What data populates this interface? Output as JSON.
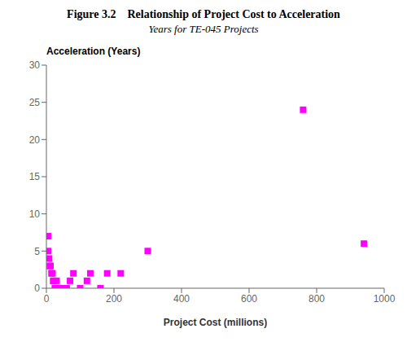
{
  "chart_data": {
    "type": "scatter",
    "title": "Figure 3.2    Relationship of Project Cost to Acceleration",
    "subtitle": "Years for TE-045 Projects",
    "x_label": "Project Cost (millions)",
    "y_label": "Acceleration (Years)",
    "color": "#ff00ff",
    "marker": "square",
    "grid": false,
    "xlim": [
      0,
      1000
    ],
    "ylim": [
      0,
      30
    ],
    "xticks": [
      0,
      200,
      400,
      600,
      800,
      1000
    ],
    "yticks": [
      0,
      5,
      10,
      15,
      20,
      25,
      30
    ],
    "x": [
      5,
      5,
      8,
      10,
      12,
      15,
      18,
      20,
      22,
      25,
      28,
      30,
      35,
      40,
      50,
      60,
      70,
      80,
      100,
      120,
      130,
      160,
      180,
      220,
      300,
      760,
      940
    ],
    "values": [
      7,
      5,
      4,
      3,
      3,
      2,
      2,
      1,
      1,
      0,
      0,
      1,
      0,
      0,
      0,
      0,
      1,
      2,
      0,
      1,
      2,
      0,
      2,
      2,
      5,
      24,
      6
    ]
  }
}
